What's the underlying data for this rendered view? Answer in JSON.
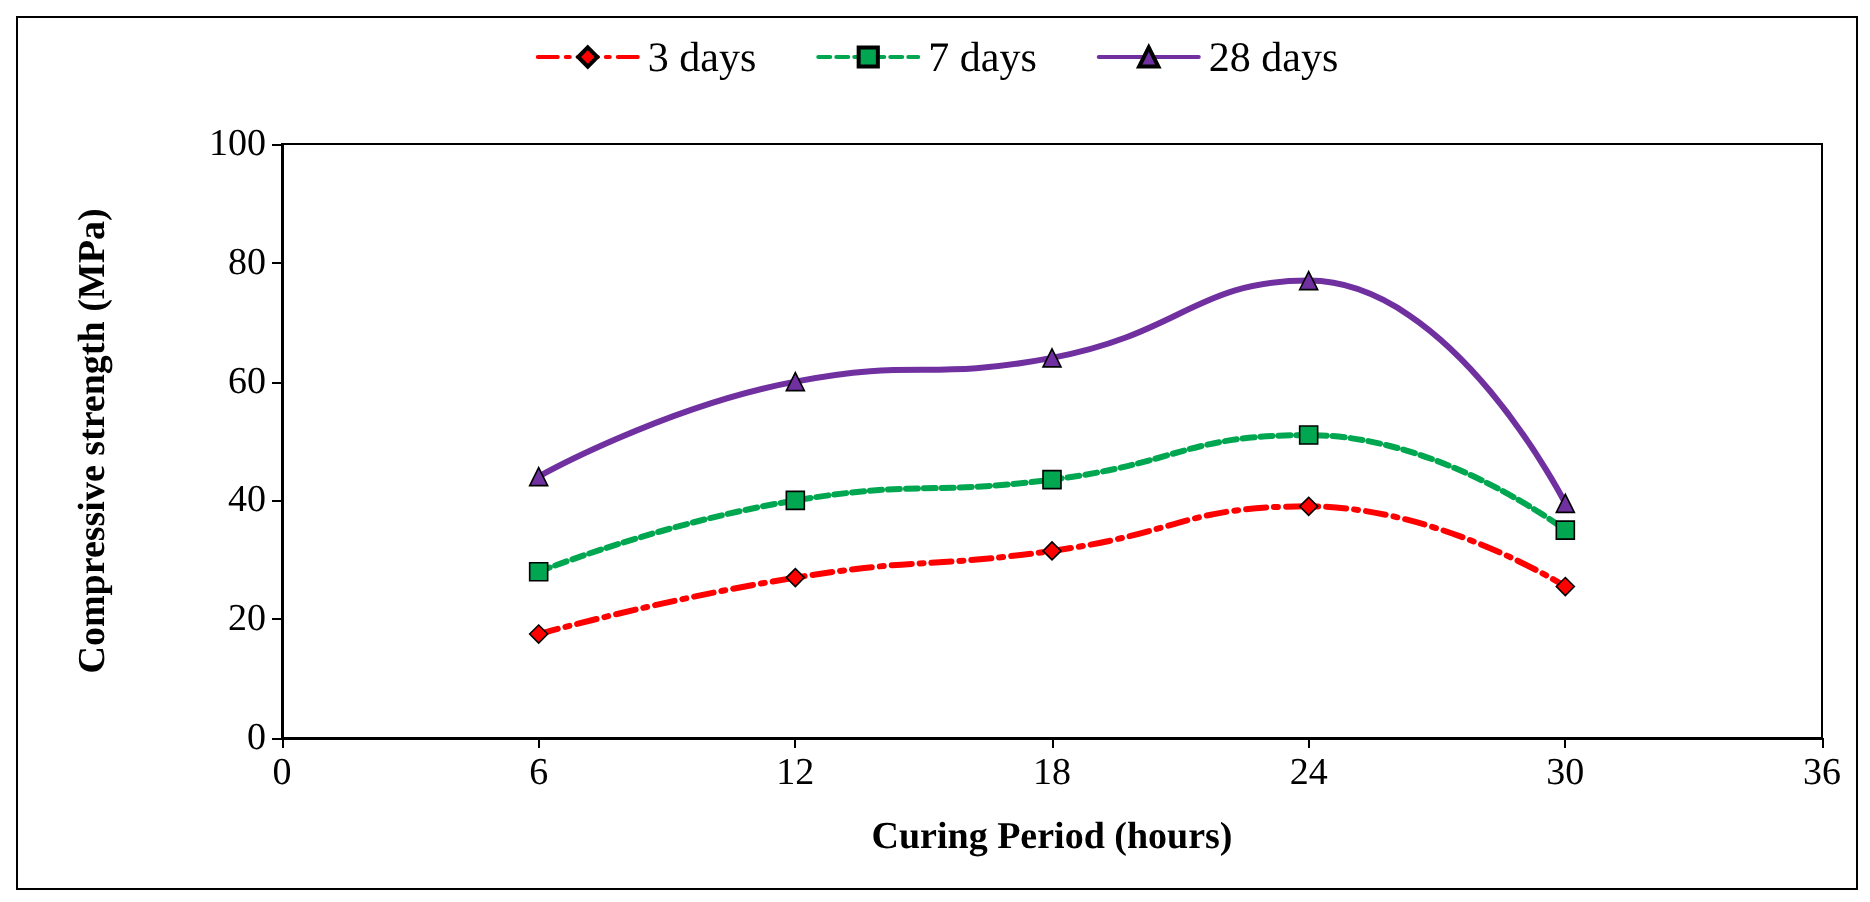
{
  "chart_data": {
    "type": "line",
    "xlabel": "Curing Period (hours)",
    "ylabel": "Compressive strength (MPa)",
    "x": [
      6,
      12,
      18,
      24,
      30
    ],
    "series": [
      {
        "name": "3 days",
        "color": "#ff0000",
        "values": [
          17.5,
          27,
          31.5,
          39,
          25.5
        ],
        "marker": "diamond",
        "line_style": "dashdot"
      },
      {
        "name": "7 days",
        "color": "#00a650",
        "values": [
          28,
          40,
          43.5,
          51,
          35
        ],
        "marker": "square",
        "line_style": "dashed"
      },
      {
        "name": "28 days",
        "color": "#7030a0",
        "values": [
          44,
          60,
          64,
          77,
          39.5
        ],
        "marker": "triangle",
        "line_style": "solid"
      }
    ],
    "xlim": [
      0,
      36
    ],
    "xticks": [
      0,
      6,
      12,
      18,
      24,
      30,
      36
    ],
    "ylim": [
      0,
      100
    ],
    "yticks": [
      0,
      20,
      40,
      60,
      80,
      100
    ],
    "grid": false,
    "legend": "top"
  }
}
